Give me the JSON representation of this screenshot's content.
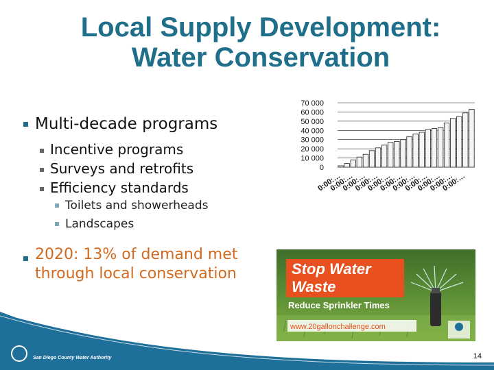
{
  "slide": {
    "title_line1": "Local Supply Development:",
    "title_line2": "Water Conservation",
    "bullets": {
      "main": "Multi-decade programs",
      "sub": [
        "Incentive programs",
        "Surveys and retrofits",
        "Efficiency standards"
      ],
      "subsub": [
        "Toilets and showerheads",
        "Landscapes"
      ],
      "stat_line1": "2020: 13% of demand met",
      "stat_line2": "through local conservation"
    },
    "footer_org": "San Diego County Water Authority",
    "page_number": "14",
    "colors": {
      "title": "#1f6f8b",
      "stat": "#d2691e",
      "footer": "#1e6f9a"
    }
  },
  "banner": {
    "headline1": "Stop Water",
    "headline2": "Waste",
    "subline": "Reduce Sprinkler Times",
    "url": "www.20gallonchallenge.com"
  },
  "chart_data": {
    "type": "bar",
    "y_ticks": [
      "70 000",
      "60 000",
      "50 000",
      "40 000",
      "30 000",
      "20 000",
      "10 000",
      "0"
    ],
    "ylim": [
      0,
      70000
    ],
    "x_tick_label": "0:00:…",
    "values": [
      1500,
      4000,
      8000,
      11000,
      14000,
      18000,
      21000,
      24000,
      27000,
      28000,
      30000,
      33000,
      36000,
      38000,
      41000,
      42000,
      43000,
      48000,
      53000,
      55000,
      59000,
      63000
    ]
  }
}
